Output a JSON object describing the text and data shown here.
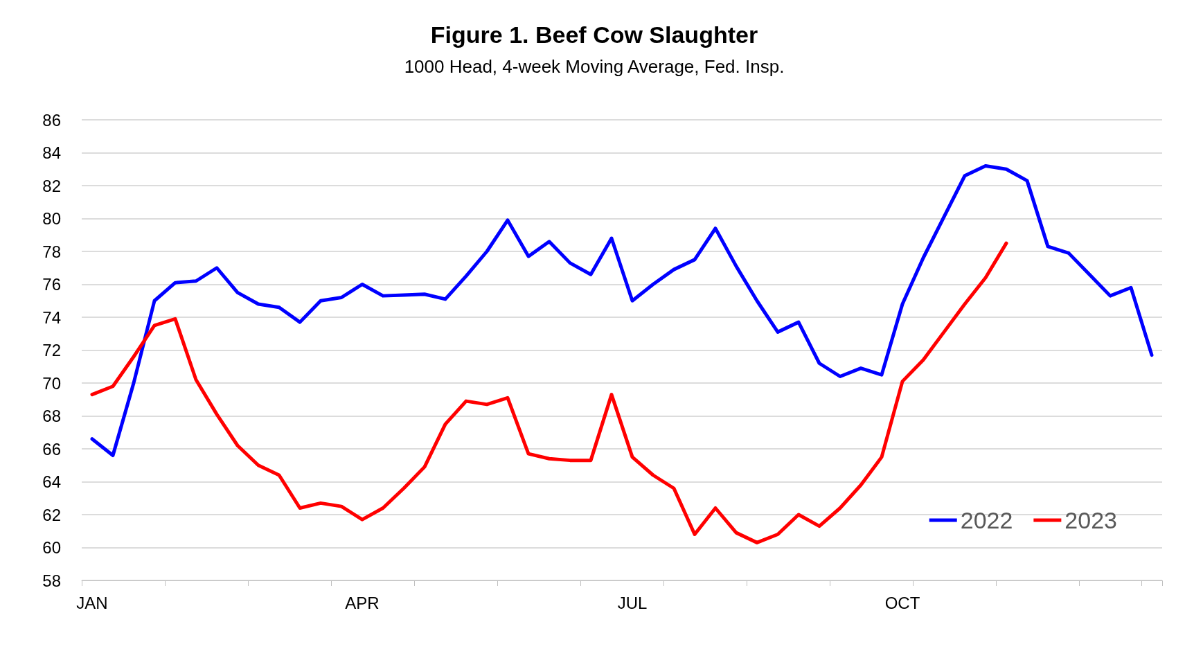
{
  "chart_data": {
    "type": "line",
    "title": "Figure 1. Beef Cow Slaughter",
    "subtitle": "1000 Head, 4-week Moving Average, Fed. Insp.",
    "categories": [
      "JAN",
      null,
      null,
      null,
      null,
      null,
      null,
      null,
      null,
      null,
      null,
      null,
      null,
      "APR",
      null,
      null,
      null,
      null,
      null,
      null,
      null,
      null,
      null,
      null,
      null,
      null,
      "JUL",
      null,
      null,
      null,
      null,
      null,
      null,
      null,
      null,
      null,
      null,
      null,
      null,
      "OCT",
      null,
      null,
      null,
      null,
      null,
      null,
      null,
      null,
      null,
      null,
      null,
      null
    ],
    "series": [
      {
        "name": "2022",
        "color": "#0000ff",
        "values": [
          66.6,
          65.6,
          70,
          75,
          76.1,
          76.2,
          77,
          75.5,
          74.8,
          74.6,
          73.7,
          75,
          75.2,
          76,
          75.3,
          75.35,
          75.4,
          75.1,
          76.5,
          78,
          79.9,
          77.7,
          78.6,
          77.3,
          76.6,
          78.8,
          75,
          76,
          76.9,
          77.5,
          79.4,
          77.1,
          75,
          73.1,
          73.7,
          71.2,
          70.4,
          70.9,
          70.5,
          74.8,
          77.6,
          80.1,
          82.6,
          83.2,
          83,
          82.3,
          78.3,
          77.9,
          76.6,
          75.3,
          75.8,
          71.7
        ]
      },
      {
        "name": "2023",
        "color": "#ff0000",
        "values": [
          69.3,
          69.8,
          71.6,
          73.5,
          73.9,
          70.2,
          68.1,
          66.2,
          65,
          64.4,
          62.4,
          62.7,
          62.5,
          61.7,
          62.4,
          63.6,
          64.9,
          67.5,
          68.9,
          68.7,
          69.1,
          65.7,
          65.4,
          65.3,
          65.3,
          69.3,
          65.5,
          64.4,
          63.6,
          60.8,
          62.4,
          60.9,
          60.3,
          60.8,
          62,
          61.3,
          62.4,
          63.8,
          65.5,
          70.1,
          71.4,
          73.1,
          74.8,
          76.4,
          78.5,
          null,
          null,
          null,
          null,
          null,
          null,
          null
        ]
      }
    ],
    "ylim": [
      58,
      86
    ],
    "yticks": [
      58,
      60,
      62,
      64,
      66,
      68,
      70,
      72,
      74,
      76,
      78,
      80,
      82,
      84,
      86
    ],
    "grid": "y",
    "legend": "bottom right",
    "marker": "none",
    "line_style": "solid"
  }
}
